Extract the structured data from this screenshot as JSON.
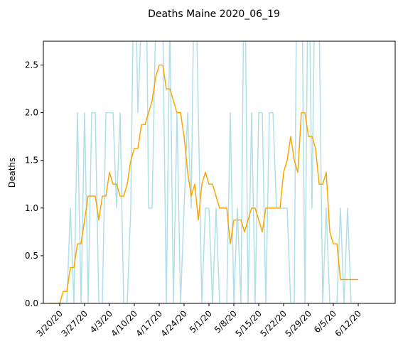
{
  "chart_data": {
    "type": "line",
    "title": "Deaths Maine 2020_06_19",
    "xlabel": "",
    "ylabel": "Deaths",
    "x_start_date": "2020-03-17",
    "ylim": [
      0,
      2.75
    ],
    "yticks": [
      0.0,
      0.5,
      1.0,
      1.5,
      2.0,
      2.5
    ],
    "ytick_labels": [
      "0.0",
      "0.5",
      "1.0",
      "1.5",
      "2.0",
      "2.5"
    ],
    "xticks": [
      {
        "label": "3/20/20",
        "date": "2020-03-20"
      },
      {
        "label": "3/27/20",
        "date": "2020-03-27"
      },
      {
        "label": "4/3/20",
        "date": "2020-04-03"
      },
      {
        "label": "4/10/20",
        "date": "2020-04-10"
      },
      {
        "label": "4/17/20",
        "date": "2020-04-17"
      },
      {
        "label": "4/24/20",
        "date": "2020-04-24"
      },
      {
        "label": "5/1/20",
        "date": "2020-05-01"
      },
      {
        "label": "5/8/20",
        "date": "2020-05-08"
      },
      {
        "label": "5/15/20",
        "date": "2020-05-15"
      },
      {
        "label": "5/22/20",
        "date": "2020-05-22"
      },
      {
        "label": "5/29/20",
        "date": "2020-05-29"
      },
      {
        "label": "6/5/20",
        "date": "2020-06-05"
      },
      {
        "label": "6/12/20",
        "date": "2020-06-12"
      }
    ],
    "grid": false,
    "legend": "none",
    "series": [
      {
        "color": "#b0e0e6",
        "values": [
          0,
          0,
          0,
          0,
          0,
          0,
          1,
          0,
          2,
          0,
          2,
          0,
          2,
          2,
          0,
          0,
          2,
          2,
          2,
          1,
          2,
          0,
          0,
          1,
          4,
          2,
          3,
          5,
          1,
          1,
          3,
          4,
          3,
          0,
          3,
          0,
          2,
          0,
          1,
          2,
          1,
          4,
          2,
          0,
          1,
          1,
          0,
          1,
          0,
          0,
          0,
          2,
          0,
          1,
          0,
          4,
          0,
          2,
          0,
          2,
          2,
          0,
          2,
          2,
          1,
          1,
          1,
          1,
          0,
          0,
          5,
          4,
          0,
          4,
          1,
          4,
          3,
          0,
          1,
          0,
          0,
          0,
          1,
          0,
          1,
          0,
          0,
          0,
          0
        ]
      },
      {
        "color": "#ffa500",
        "values": [
          0,
          0,
          0,
          0,
          0.125,
          0.125,
          0.375,
          0.375,
          0.625,
          0.625,
          0.875,
          1.125,
          1.125,
          1.125,
          0.875,
          1.125,
          1.125,
          1.375,
          1.25,
          1.25,
          1.125,
          1.125,
          1.25,
          1.5,
          1.625,
          1.625,
          1.875,
          1.875,
          2.0,
          2.125,
          2.375,
          2.5,
          2.5,
          2.25,
          2.25,
          2.125,
          2.0,
          2.0,
          1.75,
          1.375,
          1.125,
          1.25,
          0.875,
          1.25,
          1.375,
          1.25,
          1.25,
          1.125,
          1.0,
          1.0,
          1.0,
          0.625,
          0.875,
          0.875,
          0.875,
          0.75,
          0.875,
          1.0,
          1.0,
          0.875,
          0.75,
          1.0,
          1.0,
          1.0,
          1.0,
          1.0,
          1.375,
          1.5,
          1.75,
          1.5,
          1.375,
          2.0,
          2.0,
          1.75,
          1.75,
          1.625,
          1.25,
          1.25,
          1.375,
          0.75,
          0.625,
          0.625,
          0.25,
          0.25,
          0.25,
          0.25,
          0.25,
          0.25
        ]
      }
    ]
  }
}
